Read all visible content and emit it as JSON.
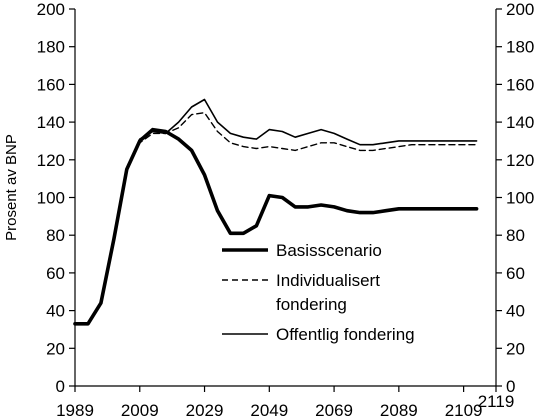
{
  "chart_data": {
    "type": "line",
    "title": "",
    "xlabel": "",
    "ylabel": "Prosent av BNP",
    "xlim": [
      1989,
      2119
    ],
    "ylim": [
      0,
      200
    ],
    "x_ticks": [
      1989,
      2009,
      2029,
      2049,
      2069,
      2089,
      2109,
      2119
    ],
    "y_ticks": [
      0,
      20,
      40,
      60,
      80,
      100,
      120,
      140,
      160,
      180,
      200
    ],
    "grid": false,
    "legend_placement": "lower-right",
    "series": [
      {
        "name": "Basisscenario",
        "style": "solid-thick",
        "color": "#000000",
        "x": [
          1989,
          1993,
          1997,
          2001,
          2005,
          2009,
          2013,
          2017,
          2021,
          2025,
          2029,
          2033,
          2037,
          2041,
          2045,
          2049,
          2053,
          2057,
          2061,
          2065,
          2069,
          2073,
          2077,
          2081,
          2085,
          2089,
          2093,
          2097,
          2101,
          2105,
          2109,
          2113
        ],
        "values": [
          33,
          33,
          44,
          78,
          115,
          130,
          136,
          135,
          131,
          125,
          112,
          93,
          81,
          81,
          85,
          101,
          100,
          95,
          95,
          96,
          95,
          93,
          92,
          92,
          93,
          94,
          94,
          94,
          94,
          94,
          94,
          94
        ]
      },
      {
        "name": "Individualisert fondering",
        "style": "dashed",
        "color": "#000000",
        "x": [
          1989,
          1993,
          1997,
          2001,
          2005,
          2009,
          2013,
          2017,
          2021,
          2025,
          2029,
          2033,
          2037,
          2041,
          2045,
          2049,
          2053,
          2057,
          2061,
          2065,
          2069,
          2073,
          2077,
          2081,
          2085,
          2089,
          2093,
          2097,
          2101,
          2105,
          2109,
          2113
        ],
        "values": [
          33,
          33,
          44,
          78,
          115,
          129,
          134,
          134,
          137,
          144,
          145,
          135,
          129,
          127,
          126,
          127,
          126,
          125,
          127,
          129,
          129,
          127,
          125,
          125,
          126,
          127,
          128,
          128,
          128,
          128,
          128,
          128
        ]
      },
      {
        "name": "Offentlig fondering",
        "style": "solid-thin",
        "color": "#000000",
        "x": [
          1989,
          1993,
          1997,
          2001,
          2005,
          2009,
          2013,
          2017,
          2021,
          2025,
          2029,
          2033,
          2037,
          2041,
          2045,
          2049,
          2053,
          2057,
          2061,
          2065,
          2069,
          2073,
          2077,
          2081,
          2085,
          2089,
          2093,
          2097,
          2101,
          2105,
          2109,
          2113
        ],
        "values": [
          33,
          33,
          44,
          78,
          115,
          131,
          135,
          134,
          140,
          148,
          152,
          140,
          134,
          132,
          131,
          136,
          135,
          132,
          134,
          136,
          134,
          131,
          128,
          128,
          129,
          130,
          130,
          130,
          130,
          130,
          130,
          130
        ]
      }
    ],
    "legend_labels": [
      {
        "series": 0,
        "lines": [
          "Basisscenario"
        ]
      },
      {
        "series": 1,
        "lines": [
          "Individualisert",
          "fondering"
        ]
      },
      {
        "series": 2,
        "lines": [
          "Offentlig fondering"
        ]
      }
    ]
  }
}
